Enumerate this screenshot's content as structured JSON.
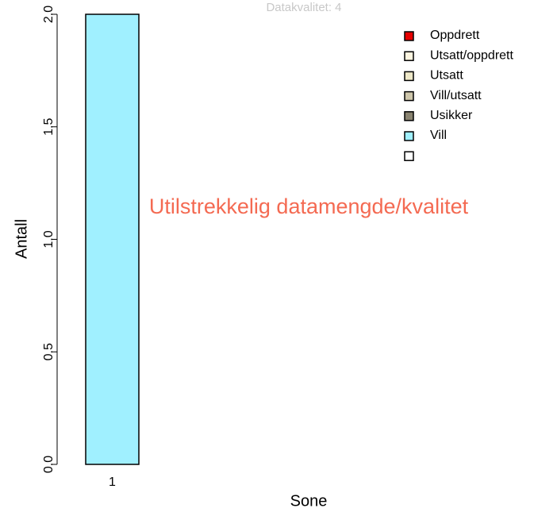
{
  "chart_data": {
    "type": "bar",
    "stacked": true,
    "title": "Datakvalitet: 4",
    "annotation": "Utilstrekkelig datamengde/kvalitet",
    "xlabel": "Sone",
    "ylabel": "Antall",
    "categories": [
      "1",
      null
    ],
    "series": [
      {
        "name": "Oppdrett",
        "color": "#e60000",
        "values": [
          0,
          0
        ]
      },
      {
        "name": "Utsatt/oppdrett",
        "color": "#fdf5e0",
        "values": [
          0,
          0
        ]
      },
      {
        "name": "Utsatt",
        "color": "#eee8c8",
        "values": [
          0,
          0
        ]
      },
      {
        "name": "Vill/utsatt",
        "color": "#cec6ab",
        "values": [
          0,
          0
        ]
      },
      {
        "name": "Usikker",
        "color": "#8a8471",
        "values": [
          0,
          0
        ]
      },
      {
        "name": "Vill",
        "color": "#a0f0ff",
        "values": [
          2,
          0
        ]
      },
      {
        "color": "#ffffff",
        "values": [
          0,
          0
        ]
      }
    ],
    "ylim": [
      0,
      2
    ],
    "yticks": [
      {
        "value": 0,
        "label": "0.0"
      },
      {
        "value": 0.5,
        "label": "0.5"
      },
      {
        "value": 1,
        "label": "1.0"
      },
      {
        "value": 1.5,
        "label": "1.5"
      },
      {
        "value": 2,
        "label": "2.0"
      }
    ],
    "legend": "top-right",
    "grid": false
  }
}
